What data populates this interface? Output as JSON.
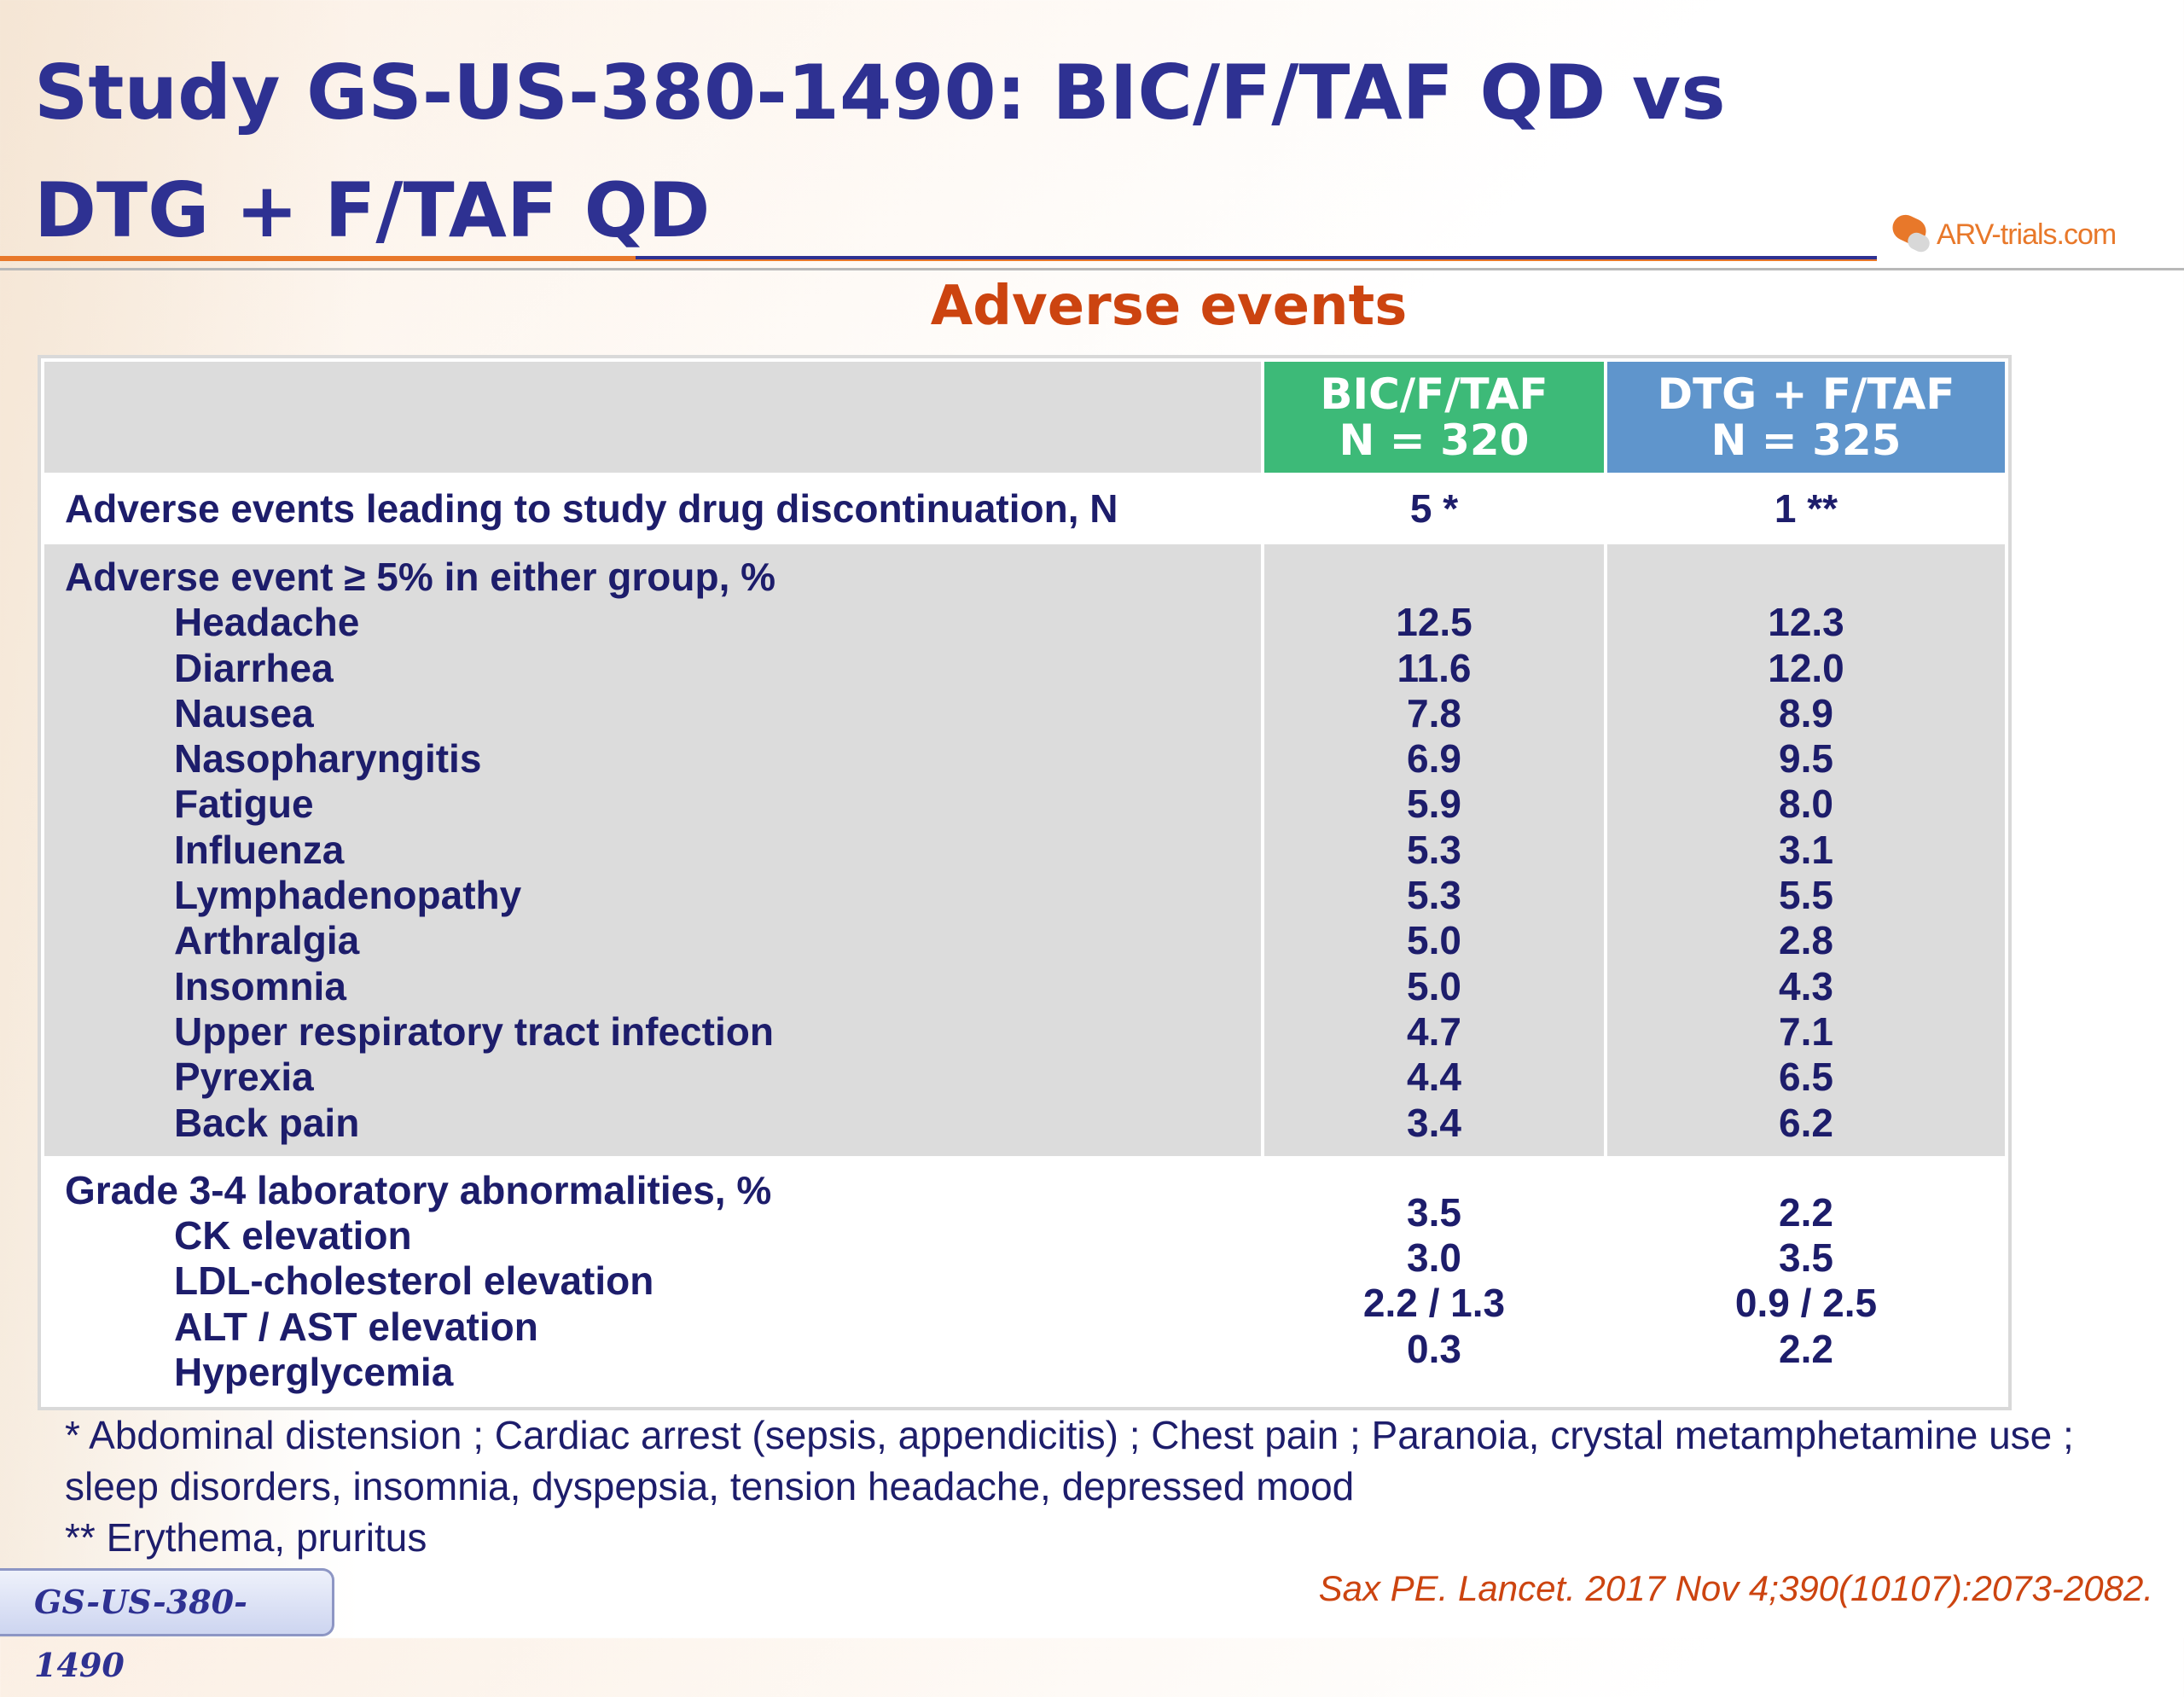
{
  "slide": {
    "title_line1": "Study GS-US-380-1490: BIC/F/TAF QD vs",
    "title_line2": "DTG + F/TAF QD",
    "subtitle": "Adverse events",
    "logo_text": "ARV-trials.com"
  },
  "table": {
    "columns": [
      {
        "line1": "BIC/F/TAF",
        "line2": "N = 320",
        "color": "#3dba78"
      },
      {
        "line1": "DTG + F/TAF",
        "line2": "N = 325",
        "color": "#5f95cc"
      }
    ],
    "discontinuation": {
      "label": "Adverse events leading to study drug discontinuation, N",
      "bic": "5 *",
      "dtg": "1 **"
    },
    "ae": {
      "heading": "Adverse event ≥ 5% in either group, %",
      "rows": [
        {
          "label": "Headache",
          "bic": "12.5",
          "dtg": "12.3"
        },
        {
          "label": "Diarrhea",
          "bic": "11.6",
          "dtg": "12.0"
        },
        {
          "label": "Nausea",
          "bic": "7.8",
          "dtg": "8.9"
        },
        {
          "label": "Nasopharyngitis",
          "bic": "6.9",
          "dtg": "9.5"
        },
        {
          "label": "Fatigue",
          "bic": "5.9",
          "dtg": "8.0"
        },
        {
          "label": "Influenza",
          "bic": "5.3",
          "dtg": "3.1"
        },
        {
          "label": "Lymphadenopathy",
          "bic": "5.3",
          "dtg": "5.5"
        },
        {
          "label": "Arthralgia",
          "bic": "5.0",
          "dtg": "2.8"
        },
        {
          "label": "Insomnia",
          "bic": "5.0",
          "dtg": "4.3"
        },
        {
          "label": "Upper respiratory tract infection",
          "bic": "4.7",
          "dtg": "7.1"
        },
        {
          "label": "Pyrexia",
          "bic": "4.4",
          "dtg": "6.5"
        },
        {
          "label": "Back pain",
          "bic": "3.4",
          "dtg": "6.2"
        }
      ]
    },
    "lab": {
      "heading": "Grade 3-4 laboratory abnormalities, %",
      "rows": [
        {
          "label": "CK elevation",
          "bic": "3.5",
          "dtg": "2.2"
        },
        {
          "label": "LDL-cholesterol elevation",
          "bic": "3.0",
          "dtg": "3.5"
        },
        {
          "label": "ALT / AST elevation",
          "bic": "2.2 / 1.3",
          "dtg": "0.9 / 2.5"
        },
        {
          "label": "Hyperglycemia",
          "bic": "0.3",
          "dtg": "2.2"
        }
      ]
    }
  },
  "footnotes": {
    "single": "* Abdominal distension ; Cardiac arrest (sepsis, appendicitis) ; Chest pain ; Paranoia, crystal metamphetamine use ; sleep disorders, insomnia, dyspepsia, tension headache, depressed mood",
    "double": "** Erythema, pruritus"
  },
  "citation": "Sax PE. Lancet. 2017 Nov 4;390(10107):2073-2082.",
  "badge": "GS-US-380-1490",
  "colors": {
    "title": "#2e3192",
    "accent_orange": "#e8782a",
    "subtitle_red": "#cc4410",
    "green_header": "#3dba78",
    "blue_header": "#5f95cc",
    "table_gray": "#dcdcdc"
  }
}
